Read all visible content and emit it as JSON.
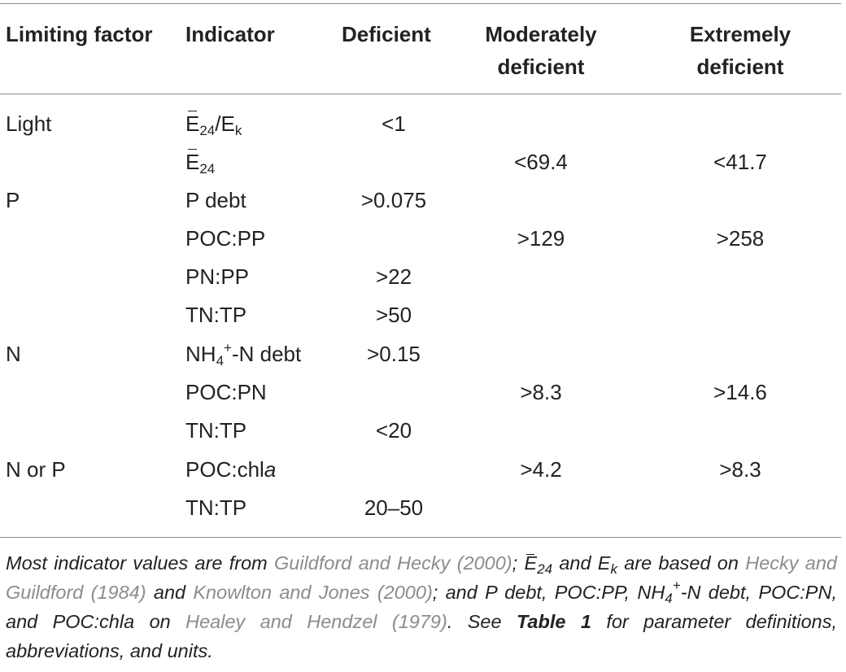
{
  "header": {
    "limiting_factor": "Limiting factor",
    "indicator": "Indicator",
    "deficient": "Deficient",
    "moderately_l1": "Moderately",
    "moderately_l2": "deficient",
    "extremely_l1": "Extremely",
    "extremely_l2": "deficient"
  },
  "rows": [
    {
      "factor": "Light",
      "ind_base": "E",
      "ind_sub": "24",
      "ind_tail": "/E",
      "ind_sub2": "k",
      "deficient": "<1",
      "moderate": "",
      "extreme": ""
    },
    {
      "factor": "",
      "ind_base": "E",
      "ind_sub": "24",
      "deficient": "",
      "moderate": "<69.4",
      "extreme": "<41.7"
    },
    {
      "factor": "P",
      "indicator": "P debt",
      "deficient": ">0.075",
      "moderate": "",
      "extreme": ""
    },
    {
      "factor": "",
      "indicator": "POC:PP",
      "deficient": "",
      "moderate": ">129",
      "extreme": ">258"
    },
    {
      "factor": "",
      "indicator": "PN:PP",
      "deficient": ">22",
      "moderate": "",
      "extreme": ""
    },
    {
      "factor": "",
      "indicator": "TN:TP",
      "deficient": ">50",
      "moderate": "",
      "extreme": ""
    },
    {
      "factor": "N",
      "ind_base": "NH",
      "ind_sub": "4",
      "ind_sup": "+",
      "ind_tail": "-N debt",
      "deficient": ">0.15",
      "moderate": "",
      "extreme": ""
    },
    {
      "factor": "",
      "indicator": "POC:PN",
      "deficient": "",
      "moderate": ">8.3",
      "extreme": ">14.6"
    },
    {
      "factor": "",
      "indicator": "TN:TP",
      "deficient": "<20",
      "moderate": "",
      "extreme": ""
    },
    {
      "factor": "N or P",
      "ind_base": "POC:chl",
      "ind_ital": "a",
      "deficient": "",
      "moderate": ">4.2",
      "extreme": ">8.3"
    },
    {
      "factor": "",
      "indicator": "TN:TP",
      "deficient": "20–50",
      "moderate": "",
      "extreme": ""
    }
  ],
  "note": {
    "t1": "Most indicator values are from ",
    "c1": "Guildford and Hecky (2000)",
    "t2": "; ",
    "e_base": "E",
    "e_sub": "24",
    "t3": " and E",
    "ek_sub": "k",
    "t4": " are based on ",
    "c2": "Hecky and Guildford (1984)",
    "t5": " and ",
    "c3": "Knowlton and Jones (2000)",
    "t6": "; and P debt, POC:PP, NH",
    "nh_sub": "4",
    "nh_sup": "+",
    "t7": "-N debt, POC:PN, and POC:chla on ",
    "c4": "Healey and Hendzel (1979)",
    "t8": ". See ",
    "tref": "Table 1",
    "t9": " for parameter definitions, abbreviations, and units."
  }
}
